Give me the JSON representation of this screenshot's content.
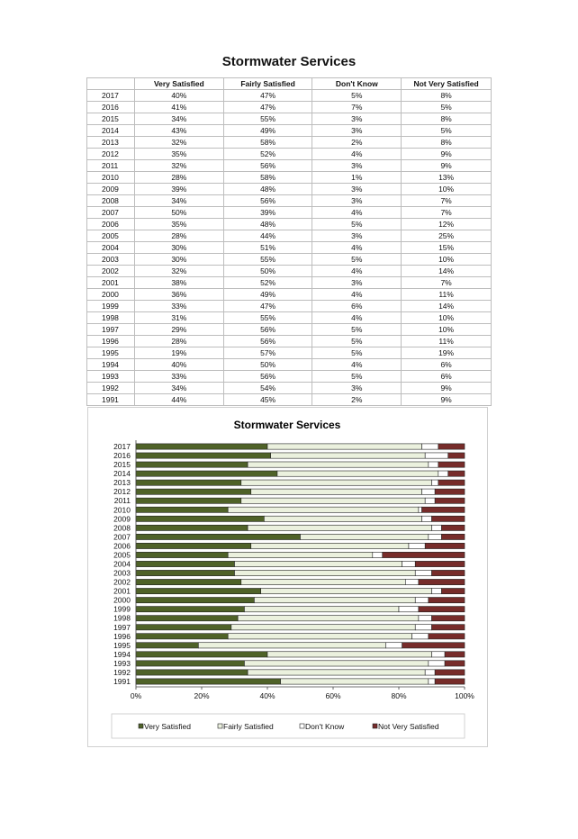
{
  "page_title": "Stormwater Services",
  "table": {
    "headers": [
      "",
      "Very Satisfied",
      "Fairly Satisfied",
      "Don't Know",
      "Not Very Satisfied"
    ],
    "rows": [
      [
        "2017",
        "40%",
        "47%",
        "5%",
        "8%"
      ],
      [
        "2016",
        "41%",
        "47%",
        "7%",
        "5%"
      ],
      [
        "2015",
        "34%",
        "55%",
        "3%",
        "8%"
      ],
      [
        "2014",
        "43%",
        "49%",
        "3%",
        "5%"
      ],
      [
        "2013",
        "32%",
        "58%",
        "2%",
        "8%"
      ],
      [
        "2012",
        "35%",
        "52%",
        "4%",
        "9%"
      ],
      [
        "2011",
        "32%",
        "56%",
        "3%",
        "9%"
      ],
      [
        "2010",
        "28%",
        "58%",
        "1%",
        "13%"
      ],
      [
        "2009",
        "39%",
        "48%",
        "3%",
        "10%"
      ],
      [
        "2008",
        "34%",
        "56%",
        "3%",
        "7%"
      ],
      [
        "2007",
        "50%",
        "39%",
        "4%",
        "7%"
      ],
      [
        "2006",
        "35%",
        "48%",
        "5%",
        "12%"
      ],
      [
        "2005",
        "28%",
        "44%",
        "3%",
        "25%"
      ],
      [
        "2004",
        "30%",
        "51%",
        "4%",
        "15%"
      ],
      [
        "2003",
        "30%",
        "55%",
        "5%",
        "10%"
      ],
      [
        "2002",
        "32%",
        "50%",
        "4%",
        "14%"
      ],
      [
        "2001",
        "38%",
        "52%",
        "3%",
        "7%"
      ],
      [
        "2000",
        "36%",
        "49%",
        "4%",
        "11%"
      ],
      [
        "1999",
        "33%",
        "47%",
        "6%",
        "14%"
      ],
      [
        "1998",
        "31%",
        "55%",
        "4%",
        "10%"
      ],
      [
        "1997",
        "29%",
        "56%",
        "5%",
        "10%"
      ],
      [
        "1996",
        "28%",
        "56%",
        "5%",
        "11%"
      ],
      [
        "1995",
        "19%",
        "57%",
        "5%",
        "19%"
      ],
      [
        "1994",
        "40%",
        "50%",
        "4%",
        "6%"
      ],
      [
        "1993",
        "33%",
        "56%",
        "5%",
        "6%"
      ],
      [
        "1992",
        "34%",
        "54%",
        "3%",
        "9%"
      ],
      [
        "1991",
        "44%",
        "45%",
        "2%",
        "9%"
      ]
    ]
  },
  "colors": {
    "very_satisfied": "#4f6228",
    "fairly_satisfied": "#ebf1de",
    "dont_know": "#ffffff",
    "not_very_satisfied": "#772c2a"
  },
  "chart_data": {
    "type": "bar",
    "orientation": "horizontal",
    "stacked": "percent",
    "title": "Stormwater Services",
    "categories": [
      "2017",
      "2016",
      "2015",
      "2014",
      "2013",
      "2012",
      "2011",
      "2010",
      "2009",
      "2008",
      "2007",
      "2006",
      "2005",
      "2004",
      "2003",
      "2002",
      "2001",
      "2000",
      "1999",
      "1998",
      "1997",
      "1996",
      "1995",
      "1994",
      "1993",
      "1992",
      "1991"
    ],
    "series": [
      {
        "name": "Very Satisfied",
        "values": [
          40,
          41,
          34,
          43,
          32,
          35,
          32,
          28,
          39,
          34,
          50,
          35,
          28,
          30,
          30,
          32,
          38,
          36,
          33,
          31,
          29,
          28,
          19,
          40,
          33,
          34,
          44
        ]
      },
      {
        "name": "Fairly Satisfied",
        "values": [
          47,
          47,
          55,
          49,
          58,
          52,
          56,
          58,
          48,
          56,
          39,
          48,
          44,
          51,
          55,
          50,
          52,
          49,
          47,
          55,
          56,
          56,
          57,
          50,
          56,
          54,
          45
        ]
      },
      {
        "name": "Don't Know",
        "values": [
          5,
          7,
          3,
          3,
          2,
          4,
          3,
          1,
          3,
          3,
          4,
          5,
          3,
          4,
          5,
          4,
          3,
          4,
          6,
          4,
          5,
          5,
          5,
          4,
          5,
          3,
          2
        ]
      },
      {
        "name": "Not Very Satisfied",
        "values": [
          8,
          5,
          8,
          5,
          8,
          9,
          9,
          13,
          10,
          7,
          7,
          12,
          25,
          15,
          10,
          14,
          7,
          11,
          14,
          10,
          10,
          11,
          19,
          6,
          6,
          9,
          9
        ]
      }
    ],
    "xlim": [
      0,
      100
    ],
    "xticks": [
      "0%",
      "20%",
      "40%",
      "60%",
      "80%",
      "100%"
    ],
    "legend_position": "bottom",
    "grid": false
  }
}
